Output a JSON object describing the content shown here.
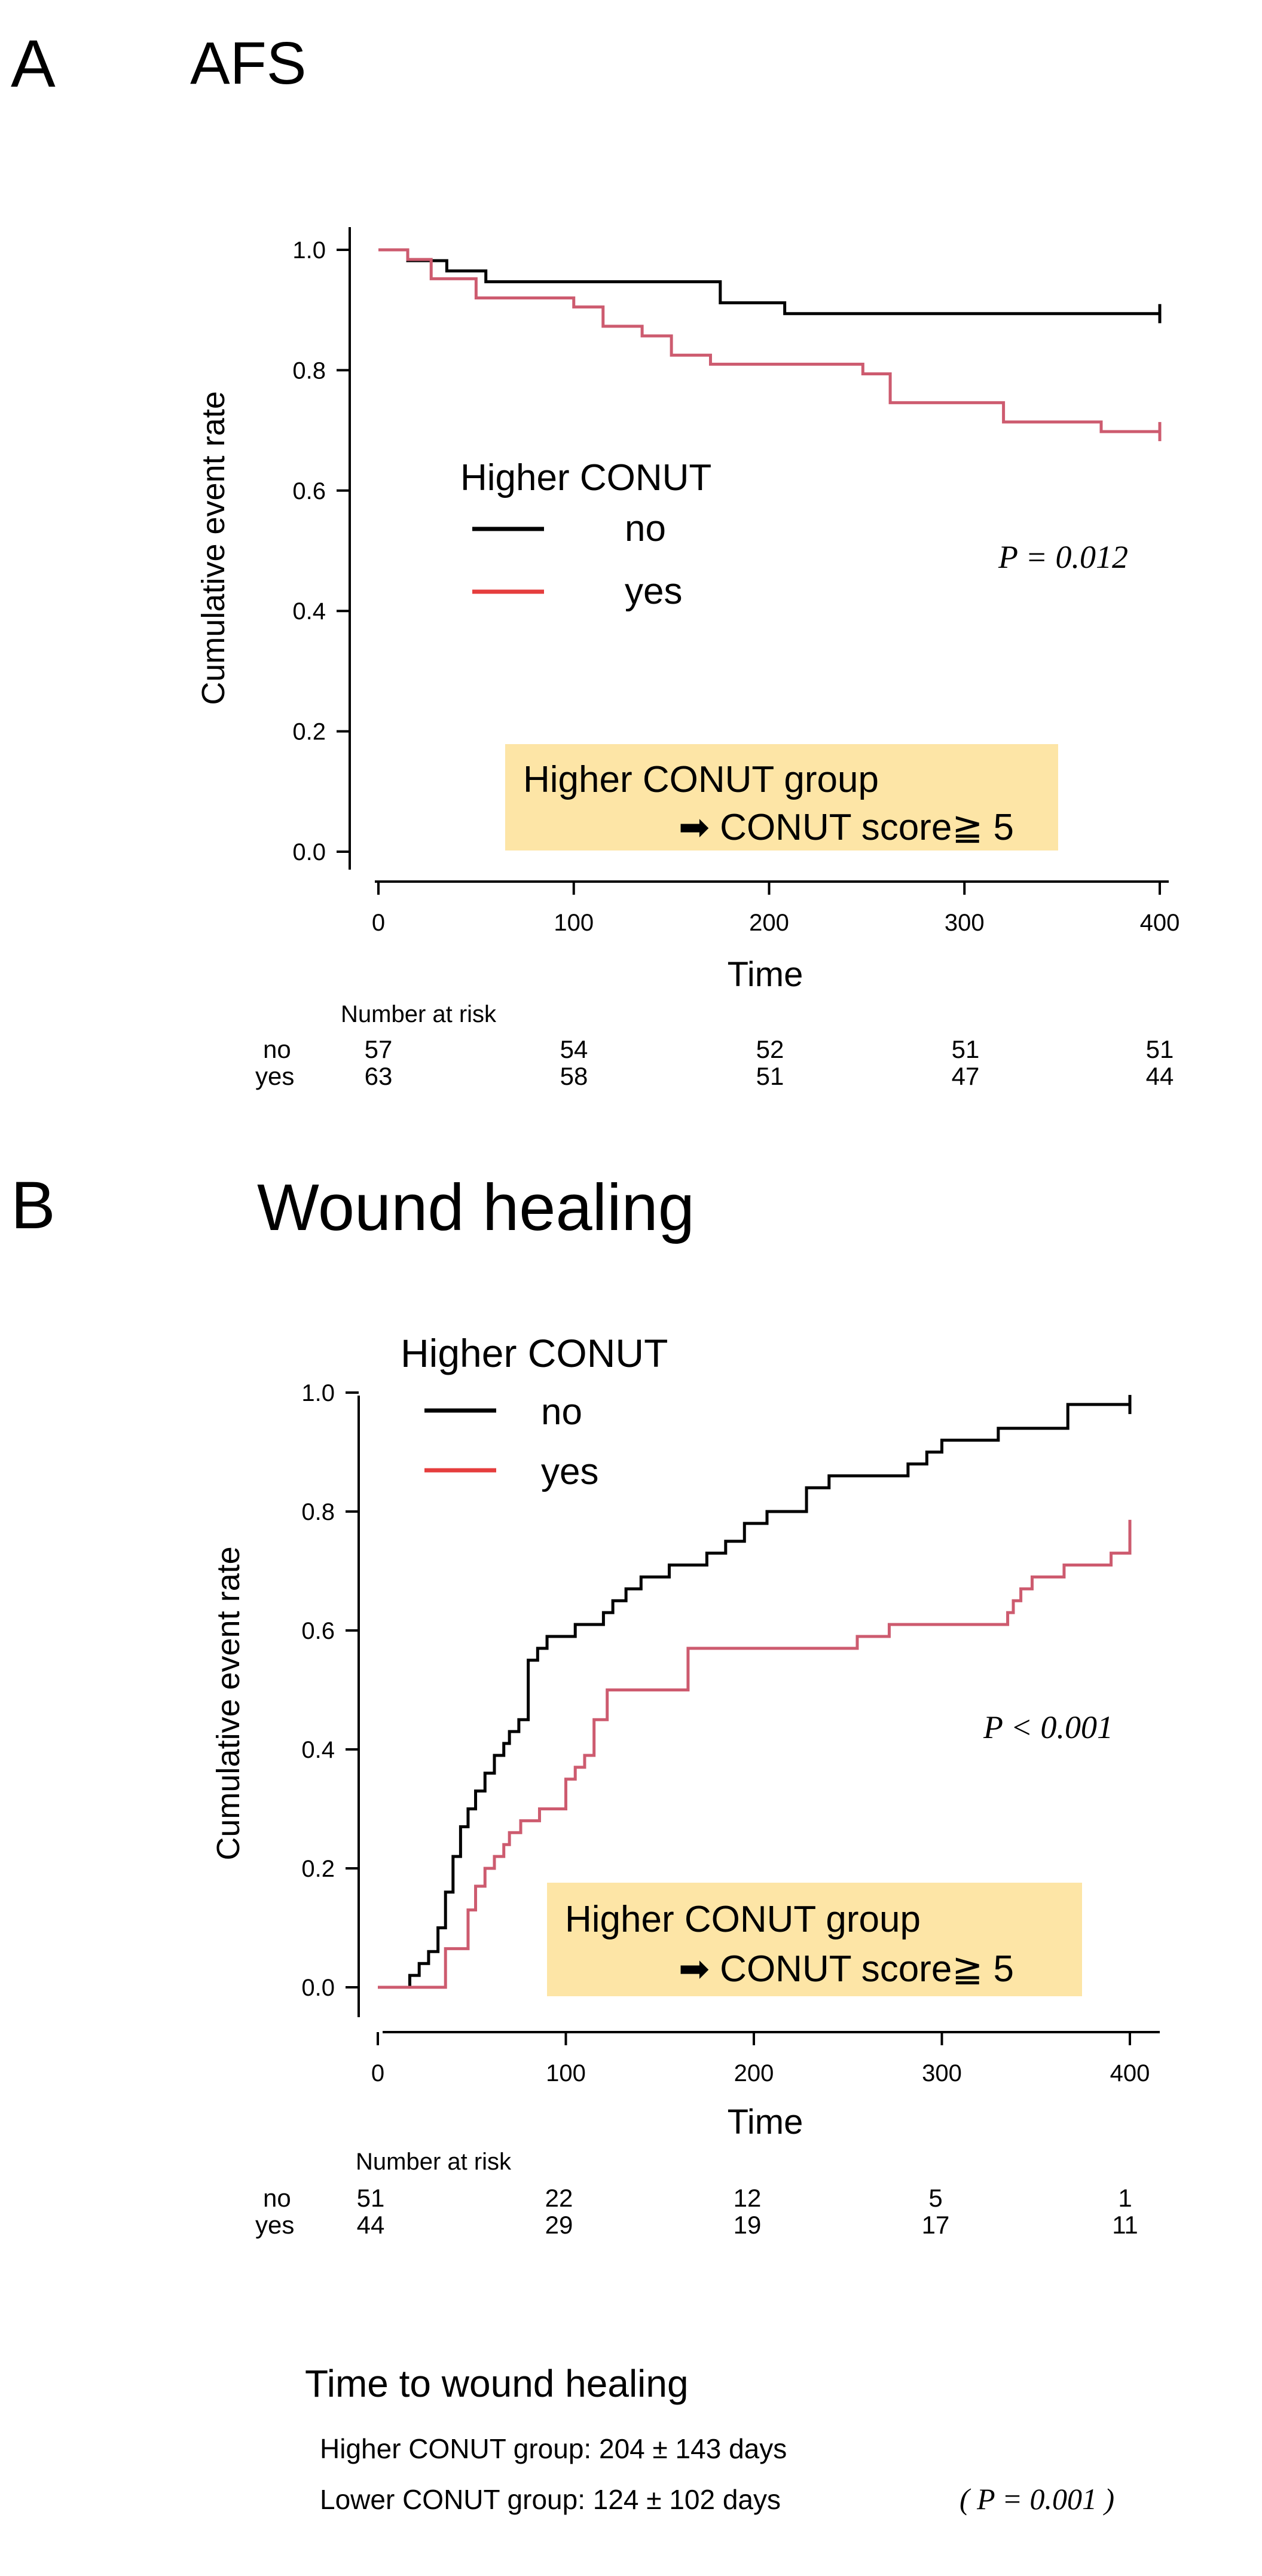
{
  "panels": [
    {
      "label": "A",
      "title": "AFS",
      "chart_data": {
        "type": "line",
        "chart": "Kaplan-Meier cumulative event rate",
        "xlabel": "Time",
        "ylabel": "Cumulative event rate",
        "xlim": [
          0,
          400
        ],
        "ylim": [
          0,
          1
        ],
        "xticks": [
          "0",
          "100",
          "200",
          "300",
          "400"
        ],
        "yticks": [
          "0.0",
          "0.2",
          "0.4",
          "0.6",
          "0.8",
          "1.0"
        ],
        "legend_title": "Higher CONUT",
        "p_value": "P = 0.012",
        "note_line1": "Higher CONUT group",
        "note_line2": "➡ CONUT score≧ 5",
        "series": [
          {
            "name": "no",
            "color": "#000000",
            "x": [
              0,
              15,
              35,
              55,
              175,
              208,
              400
            ],
            "y": [
              1.0,
              0.982,
              0.965,
              0.947,
              0.912,
              0.894,
              0.894
            ]
          },
          {
            "name": "yes",
            "color": "#cd5b6f",
            "x": [
              0,
              15,
              27,
              50,
              100,
              115,
              135,
              150,
              170,
              185,
              248,
              262,
              320,
              370,
              400
            ],
            "y": [
              1.0,
              0.984,
              0.952,
              0.92,
              0.905,
              0.873,
              0.857,
              0.825,
              0.81,
              0.81,
              0.794,
              0.746,
              0.714,
              0.698,
              0.698
            ]
          }
        ],
        "risk_table": {
          "title": "Number at risk",
          "times": [
            0,
            100,
            200,
            300,
            400
          ],
          "rows": [
            {
              "label": "no",
              "values": [
                "57",
                "54",
                "52",
                "51",
                "51"
              ]
            },
            {
              "label": "yes",
              "values": [
                "63",
                "58",
                "51",
                "47",
                "44"
              ]
            }
          ]
        }
      }
    },
    {
      "label": "B",
      "title": "Wound healing",
      "chart_data": {
        "type": "line",
        "chart": "Kaplan-Meier cumulative event rate",
        "xlabel": "Time",
        "ylabel": "Cumulative event rate",
        "xlim": [
          0,
          400
        ],
        "ylim": [
          0,
          1
        ],
        "xticks": [
          "0",
          "100",
          "200",
          "300",
          "400"
        ],
        "yticks": [
          "0.0",
          "0.2",
          "0.4",
          "0.6",
          "0.8",
          "1.0"
        ],
        "legend_title": "Higher CONUT",
        "p_value": "P < 0.001",
        "note_line1": "Higher CONUT group",
        "note_line2": "➡ CONUT score≧ 5",
        "series": [
          {
            "name": "no",
            "color": "#000000",
            "x": [
              0,
              17,
              22,
              27,
              32,
              36,
              40,
              44,
              48,
              52,
              57,
              62,
              67,
              70,
              75,
              80,
              85,
              90,
              105,
              120,
              125,
              132,
              140,
              155,
              175,
              185,
              195,
              207,
              228,
              240,
              260,
              282,
              292,
              300,
              330,
              367,
              400
            ],
            "y": [
              0.0,
              0.02,
              0.04,
              0.06,
              0.1,
              0.16,
              0.22,
              0.27,
              0.3,
              0.33,
              0.36,
              0.39,
              0.41,
              0.43,
              0.45,
              0.55,
              0.57,
              0.59,
              0.61,
              0.63,
              0.65,
              0.67,
              0.69,
              0.71,
              0.73,
              0.75,
              0.78,
              0.8,
              0.84,
              0.86,
              0.86,
              0.88,
              0.9,
              0.92,
              0.94,
              0.98,
              0.98
            ]
          },
          {
            "name": "yes",
            "color": "#cd5b6f",
            "x": [
              0,
              36,
              48,
              52,
              57,
              62,
              67,
              70,
              76,
              86,
              100,
              105,
              110,
              115,
              122,
              165,
              255,
              272,
              335,
              338,
              342,
              348,
              365,
              390,
              400
            ],
            "y": [
              0.0,
              0.065,
              0.13,
              0.17,
              0.2,
              0.22,
              0.24,
              0.26,
              0.28,
              0.3,
              0.35,
              0.37,
              0.39,
              0.45,
              0.5,
              0.57,
              0.59,
              0.61,
              0.63,
              0.65,
              0.67,
              0.69,
              0.71,
              0.73,
              0.77
            ]
          }
        ],
        "risk_table": {
          "title": "Number at risk",
          "times": [
            0,
            100,
            200,
            300,
            400
          ],
          "rows": [
            {
              "label": "no",
              "values": [
                "51",
                "22",
                "12",
                "5",
                "1"
              ]
            },
            {
              "label": "yes",
              "values": [
                "44",
                "29",
                "19",
                "17",
                "11"
              ]
            }
          ]
        }
      }
    }
  ],
  "footer": {
    "title": "Time to wound healing",
    "line1": "Higher CONUT group: 204 ± 143 days",
    "line2": "Lower  CONUT group: 124 ± 102 days",
    "p_value": "( P = 0.001 )"
  }
}
